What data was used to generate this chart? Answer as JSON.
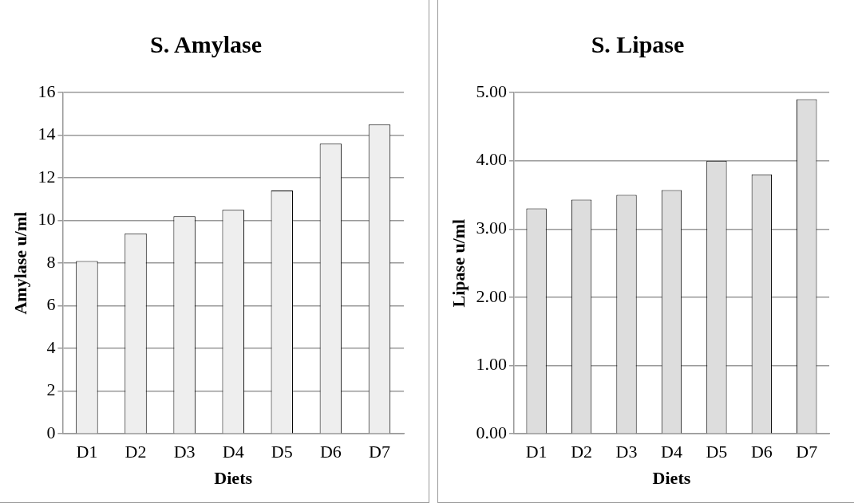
{
  "chart_data": [
    {
      "type": "bar",
      "title": "S. Amylase",
      "xlabel": "Diets",
      "ylabel": "Amylase u/ml",
      "categories": [
        "D1",
        "D2",
        "D3",
        "D4",
        "D5",
        "D6",
        "D7"
      ],
      "values": [
        8.1,
        9.4,
        10.2,
        10.5,
        11.4,
        13.6,
        14.5
      ],
      "color": "#eeeeee",
      "ylim": [
        0,
        16
      ],
      "yticks": [
        0,
        2,
        4,
        6,
        8,
        10,
        12,
        14,
        16
      ],
      "grid": "y",
      "legend": false
    },
    {
      "type": "bar",
      "title": "S. Lipase",
      "xlabel": "Diets",
      "ylabel": "Lipase u/ml",
      "categories": [
        "D1",
        "D2",
        "D3",
        "D4",
        "D5",
        "D6",
        "D7"
      ],
      "values": [
        3.3,
        3.43,
        3.5,
        3.57,
        4.0,
        3.8,
        4.9
      ],
      "color": "#dddddd",
      "ylim": [
        0,
        5
      ],
      "yticks": [
        {
          "value": 0,
          "label": "0.00"
        },
        {
          "value": 1,
          "label": "1.00"
        },
        {
          "value": 2,
          "label": "2.00"
        },
        {
          "value": 3,
          "label": "3.00"
        },
        {
          "value": 4,
          "label": "4.00"
        },
        {
          "value": 5,
          "label": "5.00"
        }
      ],
      "grid": "y",
      "legend": false
    }
  ]
}
